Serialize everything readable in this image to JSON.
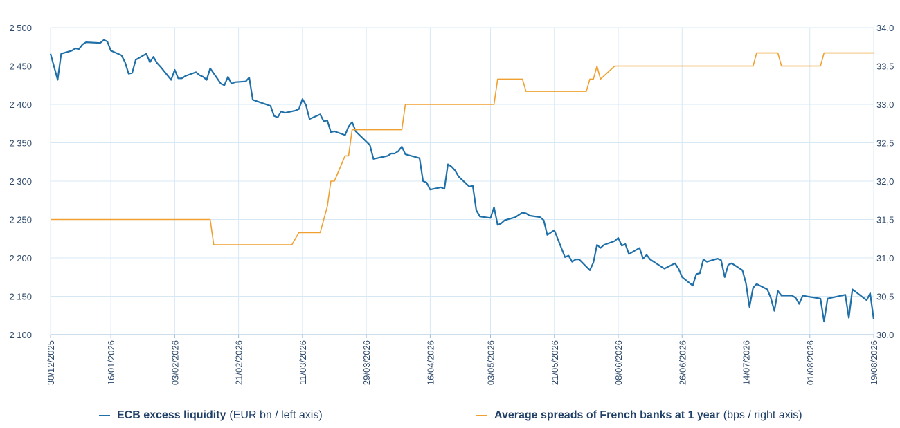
{
  "chart_data": {
    "type": "line",
    "x_ticks": [
      "30/12/2025",
      "16/01/2026",
      "03/02/2026",
      "21/02/2026",
      "11/03/2026",
      "29/03/2026",
      "16/04/2026",
      "03/05/2026",
      "21/05/2026",
      "08/06/2026",
      "26/06/2026",
      "14/07/2026",
      "01/08/2026",
      "19/08/2026"
    ],
    "x_range": [
      "2025-12-30",
      "2026-08-19"
    ],
    "y_left": {
      "range": [
        2100,
        2500
      ],
      "ticks": [
        "2 100",
        "2 150",
        "2 200",
        "2 250",
        "2 300",
        "2 350",
        "2 400",
        "2 450",
        "2 500"
      ]
    },
    "y_right": {
      "range": [
        30.0,
        34.0
      ],
      "ticks": [
        "30,0",
        "30,5",
        "31,0",
        "31,5",
        "32,0",
        "32,5",
        "33,0",
        "33,5",
        "34,0"
      ]
    },
    "grid": true,
    "legend_position": "bottom",
    "series": [
      {
        "name": "ECB excess liquidity",
        "unit_label": "(EUR bn / left axis)",
        "axis": "left",
        "color": "#1f6fa8",
        "points": [
          [
            "2025-12-30",
            2466
          ],
          [
            "2026-01-01",
            2432
          ],
          [
            "2026-01-02",
            2466
          ],
          [
            "2026-01-05",
            2470
          ],
          [
            "2026-01-06",
            2473
          ],
          [
            "2026-01-07",
            2472
          ],
          [
            "2026-01-08",
            2478
          ],
          [
            "2026-01-09",
            2481
          ],
          [
            "2026-01-13",
            2480
          ],
          [
            "2026-01-14",
            2484
          ],
          [
            "2026-01-15",
            2482
          ],
          [
            "2026-01-16",
            2470
          ],
          [
            "2026-01-19",
            2464
          ],
          [
            "2026-01-20",
            2455
          ],
          [
            "2026-01-21",
            2440
          ],
          [
            "2026-01-22",
            2441
          ],
          [
            "2026-01-23",
            2458
          ],
          [
            "2026-01-26",
            2466
          ],
          [
            "2026-01-27",
            2455
          ],
          [
            "2026-01-28",
            2462
          ],
          [
            "2026-01-29",
            2454
          ],
          [
            "2026-01-30",
            2449
          ],
          [
            "2026-02-02",
            2432
          ],
          [
            "2026-02-03",
            2445
          ],
          [
            "2026-02-04",
            2434
          ],
          [
            "2026-02-05",
            2434
          ],
          [
            "2026-02-06",
            2437
          ],
          [
            "2026-02-09",
            2442
          ],
          [
            "2026-02-10",
            2438
          ],
          [
            "2026-02-11",
            2436
          ],
          [
            "2026-02-12",
            2432
          ],
          [
            "2026-02-13",
            2447
          ],
          [
            "2026-02-16",
            2427
          ],
          [
            "2026-02-17",
            2425
          ],
          [
            "2026-02-18",
            2436
          ],
          [
            "2026-02-19",
            2427
          ],
          [
            "2026-02-20",
            2429
          ],
          [
            "2026-02-23",
            2430
          ],
          [
            "2026-02-24",
            2435
          ],
          [
            "2026-02-25",
            2406
          ],
          [
            "2026-03-02",
            2398
          ],
          [
            "2026-03-03",
            2385
          ],
          [
            "2026-03-04",
            2383
          ],
          [
            "2026-03-05",
            2391
          ],
          [
            "2026-03-06",
            2389
          ],
          [
            "2026-03-09",
            2392
          ],
          [
            "2026-03-10",
            2394
          ],
          [
            "2026-03-11",
            2407
          ],
          [
            "2026-03-12",
            2399
          ],
          [
            "2026-03-13",
            2381
          ],
          [
            "2026-03-16",
            2387
          ],
          [
            "2026-03-17",
            2378
          ],
          [
            "2026-03-18",
            2379
          ],
          [
            "2026-03-19",
            2364
          ],
          [
            "2026-03-20",
            2365
          ],
          [
            "2026-03-23",
            2360
          ],
          [
            "2026-03-24",
            2371
          ],
          [
            "2026-03-25",
            2377
          ],
          [
            "2026-03-26",
            2365
          ],
          [
            "2026-03-30",
            2347
          ],
          [
            "2026-03-31",
            2329
          ],
          [
            "2026-04-03",
            2332
          ],
          [
            "2026-04-04",
            2333
          ],
          [
            "2026-04-05",
            2336
          ],
          [
            "2026-04-06",
            2336
          ],
          [
            "2026-04-07",
            2339
          ],
          [
            "2026-04-08",
            2345
          ],
          [
            "2026-04-09",
            2335
          ],
          [
            "2026-04-13",
            2330
          ],
          [
            "2026-04-14",
            2300
          ],
          [
            "2026-04-15",
            2298
          ],
          [
            "2026-04-16",
            2289
          ],
          [
            "2026-04-19",
            2292
          ],
          [
            "2026-04-20",
            2290
          ],
          [
            "2026-04-21",
            2322
          ],
          [
            "2026-04-22",
            2319
          ],
          [
            "2026-04-23",
            2314
          ],
          [
            "2026-04-24",
            2306
          ],
          [
            "2026-04-27",
            2293
          ],
          [
            "2026-04-28",
            2294
          ],
          [
            "2026-04-29",
            2262
          ],
          [
            "2026-04-30",
            2254
          ],
          [
            "2026-05-03",
            2252
          ],
          [
            "2026-05-04",
            2266
          ],
          [
            "2026-05-05",
            2243
          ],
          [
            "2026-05-06",
            2245
          ],
          [
            "2026-05-07",
            2249
          ],
          [
            "2026-05-10",
            2253
          ],
          [
            "2026-05-11",
            2256
          ],
          [
            "2026-05-12",
            2259
          ],
          [
            "2026-05-13",
            2258
          ],
          [
            "2026-05-14",
            2255
          ],
          [
            "2026-05-17",
            2253
          ],
          [
            "2026-05-18",
            2249
          ],
          [
            "2026-05-19",
            2230
          ],
          [
            "2026-05-21",
            2236
          ],
          [
            "2026-05-24",
            2201
          ],
          [
            "2026-05-25",
            2203
          ],
          [
            "2026-05-26",
            2195
          ],
          [
            "2026-05-27",
            2198
          ],
          [
            "2026-05-28",
            2198
          ],
          [
            "2026-05-31",
            2184
          ],
          [
            "2026-06-01",
            2194
          ],
          [
            "2026-06-02",
            2217
          ],
          [
            "2026-06-03",
            2213
          ],
          [
            "2026-06-04",
            2217
          ],
          [
            "2026-06-07",
            2222
          ],
          [
            "2026-06-08",
            2226
          ],
          [
            "2026-06-09",
            2216
          ],
          [
            "2026-06-10",
            2218
          ],
          [
            "2026-06-11",
            2205
          ],
          [
            "2026-06-14",
            2213
          ],
          [
            "2026-06-15",
            2199
          ],
          [
            "2026-06-16",
            2204
          ],
          [
            "2026-06-17",
            2198
          ],
          [
            "2026-06-21",
            2186
          ],
          [
            "2026-06-24",
            2193
          ],
          [
            "2026-06-25",
            2186
          ],
          [
            "2026-06-26",
            2175
          ],
          [
            "2026-06-29",
            2164
          ],
          [
            "2026-06-30",
            2179
          ],
          [
            "2026-07-01",
            2180
          ],
          [
            "2026-07-02",
            2198
          ],
          [
            "2026-07-03",
            2195
          ],
          [
            "2026-07-06",
            2199
          ],
          [
            "2026-07-07",
            2197
          ],
          [
            "2026-07-08",
            2175
          ],
          [
            "2026-07-09",
            2191
          ],
          [
            "2026-07-10",
            2193
          ],
          [
            "2026-07-13",
            2184
          ],
          [
            "2026-07-14",
            2167
          ],
          [
            "2026-07-15",
            2136
          ],
          [
            "2026-07-16",
            2161
          ],
          [
            "2026-07-17",
            2166
          ],
          [
            "2026-07-20",
            2159
          ],
          [
            "2026-07-21",
            2148
          ],
          [
            "2026-07-22",
            2131
          ],
          [
            "2026-07-23",
            2157
          ],
          [
            "2026-07-24",
            2151
          ],
          [
            "2026-07-27",
            2151
          ],
          [
            "2026-07-28",
            2148
          ],
          [
            "2026-07-29",
            2140
          ],
          [
            "2026-07-30",
            2151
          ],
          [
            "2026-07-31",
            2150
          ],
          [
            "2026-08-04",
            2147
          ],
          [
            "2026-08-05",
            2117
          ],
          [
            "2026-08-06",
            2147
          ],
          [
            "2026-08-11",
            2152
          ],
          [
            "2026-08-12",
            2122
          ],
          [
            "2026-08-13",
            2159
          ],
          [
            "2026-08-17",
            2145
          ],
          [
            "2026-08-18",
            2154
          ],
          [
            "2026-08-19",
            2120
          ]
        ]
      },
      {
        "name": "Average spreads of French banks at 1 year",
        "unit_label": "(bps / right axis)",
        "axis": "right",
        "color": "#f0a030",
        "points": [
          [
            "2025-12-30",
            31.5
          ],
          [
            "2026-02-13",
            31.5
          ],
          [
            "2026-02-14",
            31.17
          ],
          [
            "2026-03-08",
            31.17
          ],
          [
            "2026-03-10",
            31.33
          ],
          [
            "2026-03-16",
            31.33
          ],
          [
            "2026-03-18",
            31.67
          ],
          [
            "2026-03-19",
            32.0
          ],
          [
            "2026-03-20",
            32.0
          ],
          [
            "2026-03-23",
            32.33
          ],
          [
            "2026-03-24",
            32.33
          ],
          [
            "2026-03-25",
            32.67
          ],
          [
            "2026-04-08",
            32.67
          ],
          [
            "2026-04-09",
            33.0
          ],
          [
            "2026-05-04",
            33.0
          ],
          [
            "2026-05-05",
            33.33
          ],
          [
            "2026-05-12",
            33.33
          ],
          [
            "2026-05-13",
            33.17
          ],
          [
            "2026-05-30",
            33.17
          ],
          [
            "2026-05-31",
            33.33
          ],
          [
            "2026-06-01",
            33.33
          ],
          [
            "2026-06-02",
            33.5
          ],
          [
            "2026-06-03",
            33.33
          ],
          [
            "2026-06-07",
            33.5
          ],
          [
            "2026-07-16",
            33.5
          ],
          [
            "2026-07-17",
            33.67
          ],
          [
            "2026-07-23",
            33.67
          ],
          [
            "2026-07-24",
            33.5
          ],
          [
            "2026-08-04",
            33.5
          ],
          [
            "2026-08-05",
            33.67
          ],
          [
            "2026-08-19",
            33.67
          ]
        ]
      }
    ]
  }
}
